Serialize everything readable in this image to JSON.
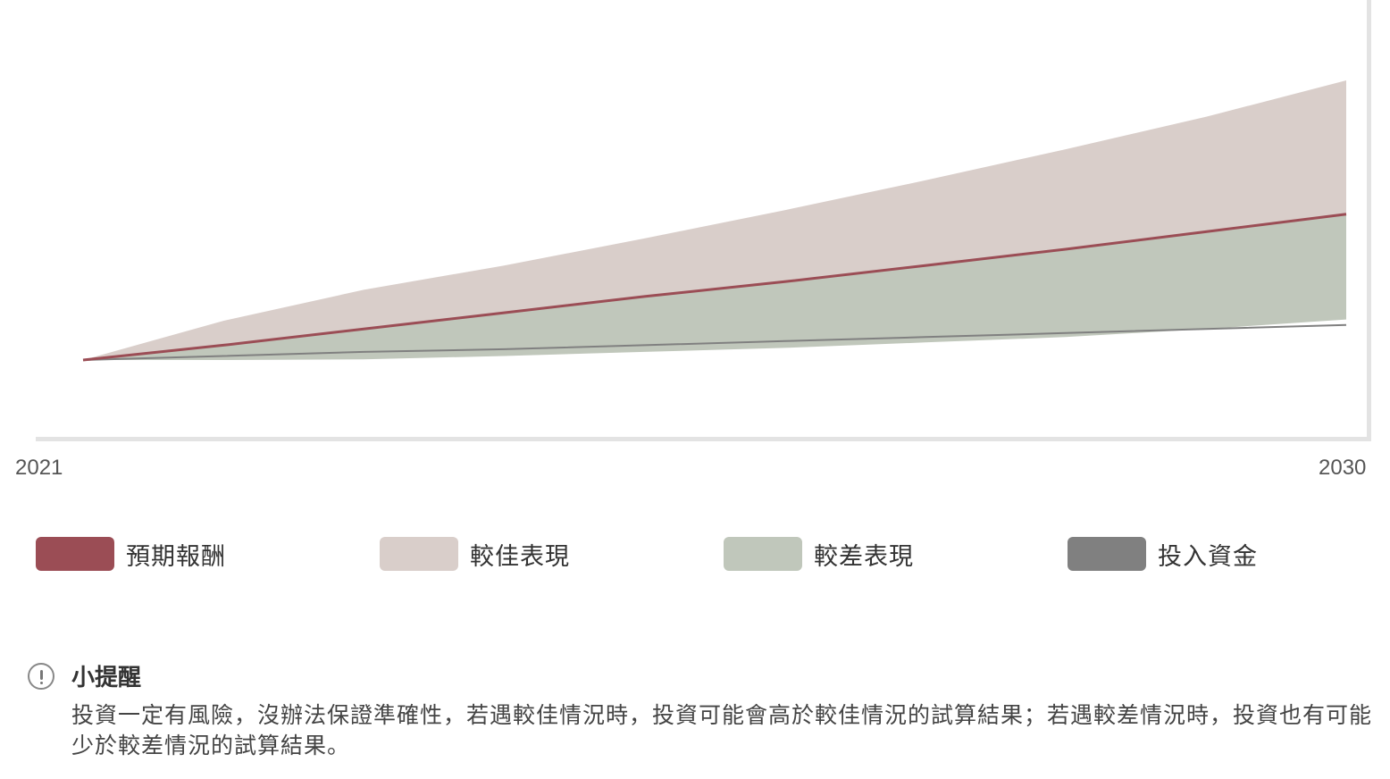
{
  "chart_data": {
    "type": "area",
    "x": [
      "2021",
      "2022",
      "2023",
      "2024",
      "2025",
      "2026",
      "2027",
      "2028",
      "2029",
      "2030"
    ],
    "x_ticks_shown": [
      "2021",
      "2030"
    ],
    "series": [
      {
        "name": "預期報酬",
        "kind": "line",
        "color": "#9b4d55",
        "values": [
          100,
          111,
          123,
          135,
          147,
          158,
          170,
          182,
          195,
          208
        ]
      },
      {
        "name": "較佳表現",
        "kind": "band_upper",
        "color": "#d9ceca",
        "values": [
          100,
          129,
          152,
          170,
          190,
          211,
          233,
          256,
          280,
          307
        ]
      },
      {
        "name": "較差表現",
        "kind": "band_lower",
        "color": "#c0c7bb",
        "values": [
          100,
          100,
          100.5,
          103,
          106,
          109,
          113,
          117,
          123,
          130
        ]
      },
      {
        "name": "投入資金",
        "kind": "line",
        "color": "#808080",
        "values": [
          100,
          103,
          106,
          108,
          111,
          114,
          117,
          120,
          123,
          126
        ]
      }
    ],
    "ylim": [
      70,
      327
    ],
    "grid": false,
    "legend_placement": "bottom"
  },
  "axis": {
    "x_start": "2021",
    "x_end": "2030"
  },
  "legend": [
    {
      "label": "預期報酬",
      "color": "#9b4d55"
    },
    {
      "label": "較佳表現",
      "color": "#d9ceca"
    },
    {
      "label": "較差表現",
      "color": "#c0c7bb"
    },
    {
      "label": "投入資金",
      "color": "#808080"
    }
  ],
  "notice": {
    "icon": "exclamation-circle-icon",
    "title": "小提醒",
    "body": "投資一定有風險，沒辦法保證準確性，若遇較佳情況時，投資可能會高於較佳情況的試算結果；若遇較差情況時，投資也有可能少於較差情況的試算結果。"
  }
}
